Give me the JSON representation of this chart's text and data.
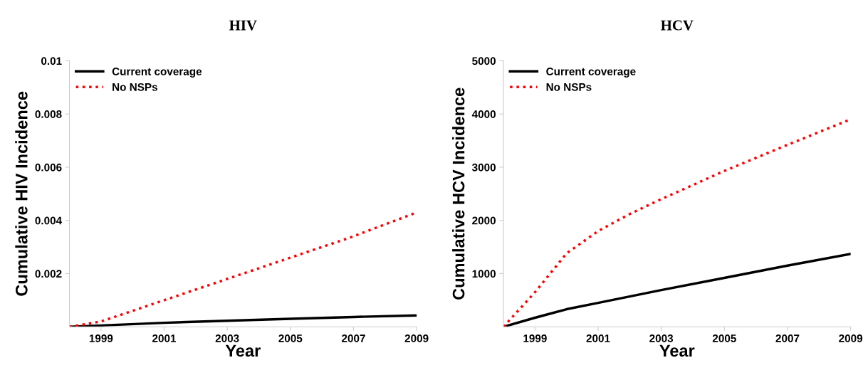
{
  "chart_data": [
    {
      "type": "line",
      "title": "HIV",
      "xlabel": "Year",
      "ylabel": "Cumulative HIV Incidence",
      "xlim": [
        1998,
        2009
      ],
      "xticks": [
        1999,
        2001,
        2003,
        2005,
        2007,
        2009
      ],
      "ylim": [
        0,
        0.01
      ],
      "yticks": [
        0.002,
        0.004,
        0.006,
        0.008,
        0.01
      ],
      "legend": "top left",
      "grid": false,
      "series": [
        {
          "name": "Current coverage",
          "color": "#000000",
          "line_style": "solid",
          "x": [
            1998,
            1999,
            2001,
            2003,
            2005,
            2007,
            2009
          ],
          "values": [
            0,
            5e-05,
            0.00015,
            0.00023,
            0.0003,
            0.00037,
            0.00043
          ]
        },
        {
          "name": "No NSPs",
          "color": "#ff0000",
          "line_style": "dotted",
          "x": [
            1998,
            1999,
            2000,
            2001,
            2003,
            2005,
            2007,
            2009
          ],
          "values": [
            0,
            0.0002,
            0.0006,
            0.001,
            0.0018,
            0.0026,
            0.0034,
            0.0043
          ]
        }
      ]
    },
    {
      "type": "line",
      "title": "HCV",
      "xlabel": "Year",
      "ylabel": "Cumulative HCV Incidence",
      "xlim": [
        1998,
        2009
      ],
      "xticks": [
        1999,
        2001,
        2003,
        2005,
        2007,
        2009
      ],
      "ylim": [
        0,
        5000
      ],
      "yticks": [
        1000,
        2000,
        3000,
        4000,
        5000
      ],
      "legend": "top left",
      "grid": false,
      "series": [
        {
          "name": "Current coverage",
          "color": "#000000",
          "line_style": "solid",
          "x": [
            1998,
            1999,
            2000,
            2001,
            2003,
            2005,
            2007,
            2009
          ],
          "values": [
            0,
            170,
            330,
            450,
            690,
            920,
            1150,
            1370
          ]
        },
        {
          "name": "No NSPs",
          "color": "#ff0000",
          "line_style": "dotted",
          "x": [
            1998,
            1999,
            2000,
            2001,
            2002,
            2003,
            2005,
            2007,
            2009
          ],
          "values": [
            0,
            650,
            1380,
            1800,
            2120,
            2400,
            2930,
            3420,
            3900
          ]
        }
      ]
    }
  ]
}
